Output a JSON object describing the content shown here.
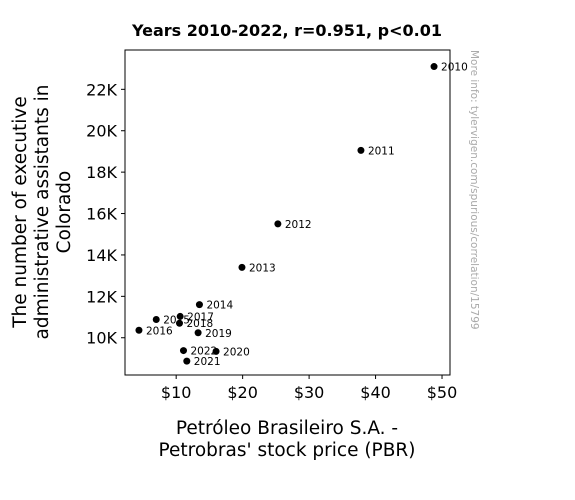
{
  "chart_data": {
    "type": "scatter",
    "title": "Years 2010-2022, r=0.951, p<0.01",
    "xlabel_lines": [
      "Petróleo Brasileiro S.A. -",
      "Petrobras' stock price (PBR)"
    ],
    "ylabel_lines": [
      "The number of executive",
      "administrative assistants in",
      "Colorado"
    ],
    "xlim": [
      2.3,
      51.2
    ],
    "ylim": [
      8200,
      23900
    ],
    "x_ticks": [
      10,
      20,
      30,
      40,
      50
    ],
    "x_tick_labels": [
      "$10",
      "$20",
      "$30",
      "$40",
      "$50"
    ],
    "y_ticks": [
      10000,
      12000,
      14000,
      16000,
      18000,
      20000,
      22000
    ],
    "y_tick_labels": [
      "10K",
      "12K",
      "14K",
      "16K",
      "18K",
      "20K",
      "22K"
    ],
    "grid": false,
    "point_color": "#000000",
    "points": [
      {
        "label": "2010",
        "x": 48.8,
        "y": 23100
      },
      {
        "label": "2011",
        "x": 37.8,
        "y": 19050
      },
      {
        "label": "2012",
        "x": 25.3,
        "y": 15500
      },
      {
        "label": "2013",
        "x": 19.9,
        "y": 13400
      },
      {
        "label": "2014",
        "x": 13.5,
        "y": 11600
      },
      {
        "label": "2015",
        "x": 7.0,
        "y": 10880
      },
      {
        "label": "2016",
        "x": 4.4,
        "y": 10360
      },
      {
        "label": "2017",
        "x": 10.6,
        "y": 11030
      },
      {
        "label": "2018",
        "x": 10.5,
        "y": 10700
      },
      {
        "label": "2019",
        "x": 13.3,
        "y": 10240
      },
      {
        "label": "2020",
        "x": 16.0,
        "y": 9340
      },
      {
        "label": "2021",
        "x": 11.6,
        "y": 8870
      },
      {
        "label": "2022",
        "x": 11.1,
        "y": 9380
      }
    ],
    "watermark": "More info: tylervigen.com/spurious/correlation/15799"
  }
}
